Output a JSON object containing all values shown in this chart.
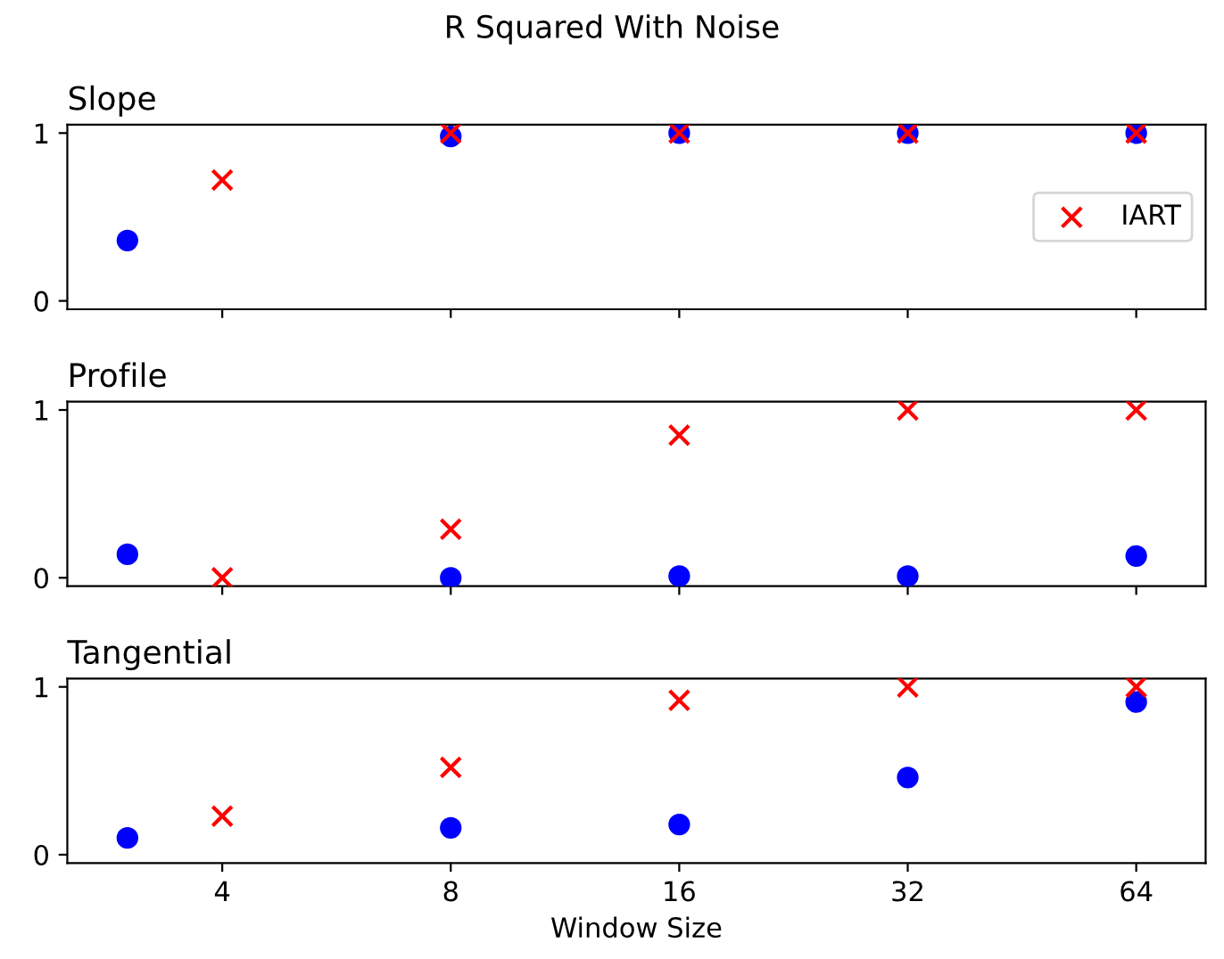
{
  "chart_data": [
    {
      "type": "scatter",
      "title": "R Squared With Noise",
      "subtitle": "Slope",
      "log": "x",
      "xlim": [
        2.5,
        79
      ],
      "xticks": [
        4,
        8,
        16,
        32,
        64
      ],
      "ylim": [
        -0.05,
        1.05
      ],
      "yticks": [
        0,
        1
      ],
      "tick_labels": "y",
      "legend": "right",
      "grid": false,
      "series": [
        {
          "color": "#0000ff",
          "marker": "circle",
          "x": [
            3,
            8,
            16,
            32,
            64
          ],
          "values": [
            0.36,
            0.98,
            1,
            1,
            1
          ]
        },
        {
          "name": "IART",
          "color": "#ff0000",
          "marker": "cross",
          "x": [
            4,
            8,
            16,
            32,
            64
          ],
          "values": [
            0.72,
            1,
            1,
            1,
            1
          ]
        }
      ]
    },
    {
      "type": "scatter",
      "subtitle": "Profile",
      "log": "x",
      "xlim": [
        2.5,
        79
      ],
      "xticks": [
        4,
        8,
        16,
        32,
        64
      ],
      "ylim": [
        -0.05,
        1.05
      ],
      "yticks": [
        0,
        1
      ],
      "tick_labels": "y",
      "grid": false,
      "series": [
        {
          "color": "#0000ff",
          "marker": "circle",
          "x": [
            3,
            8,
            16,
            32,
            64
          ],
          "values": [
            0.14,
            0,
            0.01,
            0.01,
            0.13
          ]
        },
        {
          "color": "#ff0000",
          "marker": "cross",
          "x": [
            4,
            8,
            16,
            32,
            64
          ],
          "values": [
            0,
            0.29,
            0.85,
            1,
            1
          ]
        }
      ]
    },
    {
      "type": "scatter",
      "subtitle": "Tangential",
      "xlabel": "Window Size",
      "log": "x",
      "xlim": [
        2.5,
        79
      ],
      "xticks": [
        4,
        8,
        16,
        32,
        64
      ],
      "ylim": [
        -0.05,
        1.05
      ],
      "yticks": [
        0,
        1
      ],
      "grid": false,
      "series": [
        {
          "color": "#0000ff",
          "marker": "circle",
          "x": [
            3,
            8,
            16,
            32,
            64
          ],
          "values": [
            0.1,
            0.16,
            0.18,
            0.46,
            0.91
          ]
        },
        {
          "color": "#ff0000",
          "marker": "cross",
          "x": [
            4,
            8,
            16,
            32,
            64
          ],
          "values": [
            0.23,
            0.52,
            0.92,
            1,
            1
          ]
        }
      ]
    }
  ]
}
